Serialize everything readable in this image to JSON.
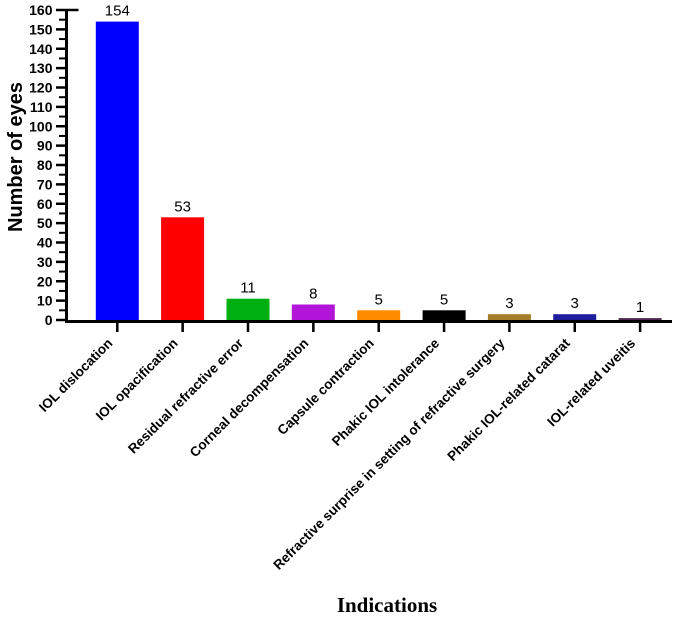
{
  "figure": {
    "background_color": "#FFFFFF",
    "axis_color": "#000000",
    "text_color": "#000000"
  },
  "chart_data": {
    "type": "bar",
    "title": "",
    "xlabel": "Indications",
    "ylabel": "Number of eyes",
    "categories": [
      "IOL dislocation",
      "IOL opacification",
      "Residual refractive error",
      "Corneal decompensation",
      "Capsule contraction",
      "Phakic IOL intolerance",
      "Refractive surprise in setting of refractive surgery",
      "Phakic IOL-related catarat",
      "IOL-related uveitis"
    ],
    "values": [
      154,
      53,
      11,
      8,
      5,
      5,
      3,
      3,
      1
    ],
    "value_labels": [
      "154",
      "53",
      "11",
      "8",
      "5",
      "5",
      "3",
      "3",
      "1"
    ],
    "bar_colors": [
      "#0000FF",
      "#FF0000",
      "#00B010",
      "#B215D8",
      "#FF8C00",
      "#000000",
      "#A67C28",
      "#1E1E9C",
      "#4E2A50"
    ],
    "ylim": [
      0,
      160
    ],
    "ytick_step": 10,
    "ytick_minor_step": 5,
    "ytick_labels": [
      "0",
      "10",
      "20",
      "30",
      "40",
      "50",
      "60",
      "70",
      "80",
      "90",
      "100",
      "110",
      "120",
      "130",
      "140",
      "150",
      "160"
    ],
    "grid": false,
    "legend": "none",
    "xtick_label_rotation_deg": -45
  }
}
